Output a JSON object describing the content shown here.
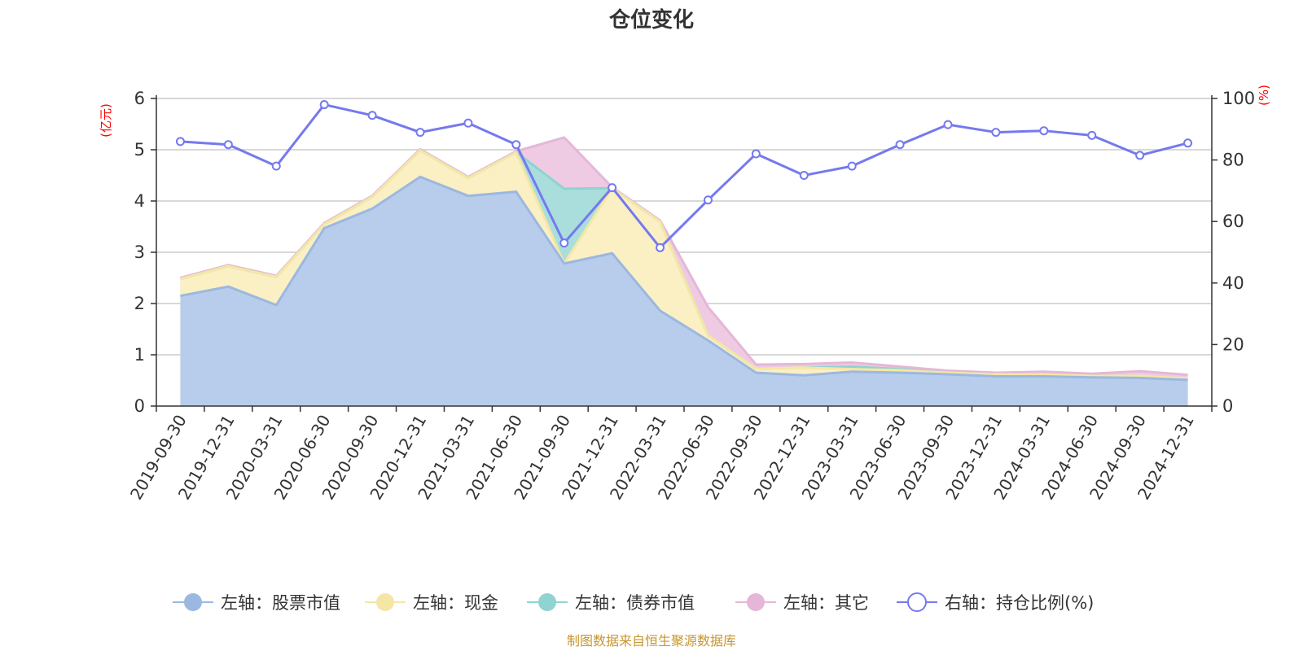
{
  "chart_data": {
    "type": "area",
    "title": "仓位变化",
    "left_axis_unit": "(亿元)",
    "right_axis_unit": "(%)",
    "left_ylim": [
      0,
      6
    ],
    "left_yticks": [
      0,
      1,
      2,
      3,
      4,
      5,
      6
    ],
    "right_ylim": [
      0,
      100
    ],
    "right_yticks": [
      0,
      20,
      40,
      60,
      80,
      100
    ],
    "grid": true,
    "legend_position": "bottom",
    "categories": [
      "2019-09-30",
      "2019-12-31",
      "2020-03-31",
      "2020-06-30",
      "2020-09-30",
      "2020-12-31",
      "2021-03-31",
      "2021-06-30",
      "2021-09-30",
      "2021-12-31",
      "2022-03-31",
      "2022-06-30",
      "2022-09-30",
      "2022-12-31",
      "2023-03-31",
      "2023-06-30",
      "2023-09-30",
      "2023-12-31",
      "2024-03-31",
      "2024-06-30",
      "2024-09-30",
      "2024-12-31"
    ],
    "series": [
      {
        "name": "左轴：股票市值",
        "axis": "left",
        "color": "#9bb8e0",
        "fill": "#b8cdeb",
        "values": [
          2.15,
          2.33,
          1.97,
          3.47,
          3.85,
          4.47,
          4.1,
          4.18,
          2.78,
          2.98,
          1.86,
          1.28,
          0.65,
          0.6,
          0.67,
          0.65,
          0.62,
          0.58,
          0.58,
          0.56,
          0.55,
          0.51
        ]
      },
      {
        "name": "左轴：现金",
        "axis": "left",
        "color": "#f5e6a5",
        "fill": "#fbefc4",
        "values": [
          0.33,
          0.4,
          0.55,
          0.08,
          0.23,
          0.52,
          0.35,
          0.77,
          0.0,
          1.27,
          1.74,
          0.1,
          0.08,
          0.15,
          0.05,
          0.05,
          0.03,
          0.04,
          0.04,
          0.03,
          0.04,
          0.03
        ]
      },
      {
        "name": "左轴：债券市值",
        "axis": "left",
        "color": "#8fd3d2",
        "fill": "#a9dedd",
        "values": [
          0.0,
          0.0,
          0.0,
          0.0,
          0.0,
          0.0,
          0.0,
          0.0,
          1.46,
          0.0,
          0.0,
          0.0,
          0.0,
          0.0,
          0.05,
          0.02,
          0.0,
          0.0,
          0.0,
          0.0,
          0.0,
          0.0
        ]
      },
      {
        "name": "左轴：其它",
        "axis": "left",
        "color": "#e6b6d8",
        "fill": "#eecbe3",
        "values": [
          0.02,
          0.02,
          0.02,
          0.02,
          0.02,
          0.02,
          0.02,
          0.02,
          1.0,
          0.02,
          0.02,
          0.55,
          0.08,
          0.07,
          0.08,
          0.05,
          0.04,
          0.03,
          0.05,
          0.04,
          0.09,
          0.07
        ]
      },
      {
        "name": "右轴：持仓比例(%)",
        "axis": "right",
        "color": "#7579ee",
        "values": [
          86.0,
          85.0,
          78.0,
          98.0,
          94.5,
          89.0,
          92.0,
          85.0,
          53.0,
          71.0,
          51.5,
          67.0,
          82.0,
          75.0,
          78.0,
          85.0,
          91.5,
          89.0,
          89.5,
          88.0,
          81.5,
          85.5
        ]
      }
    ]
  },
  "source_note": "制图数据来自恒生聚源数据库"
}
